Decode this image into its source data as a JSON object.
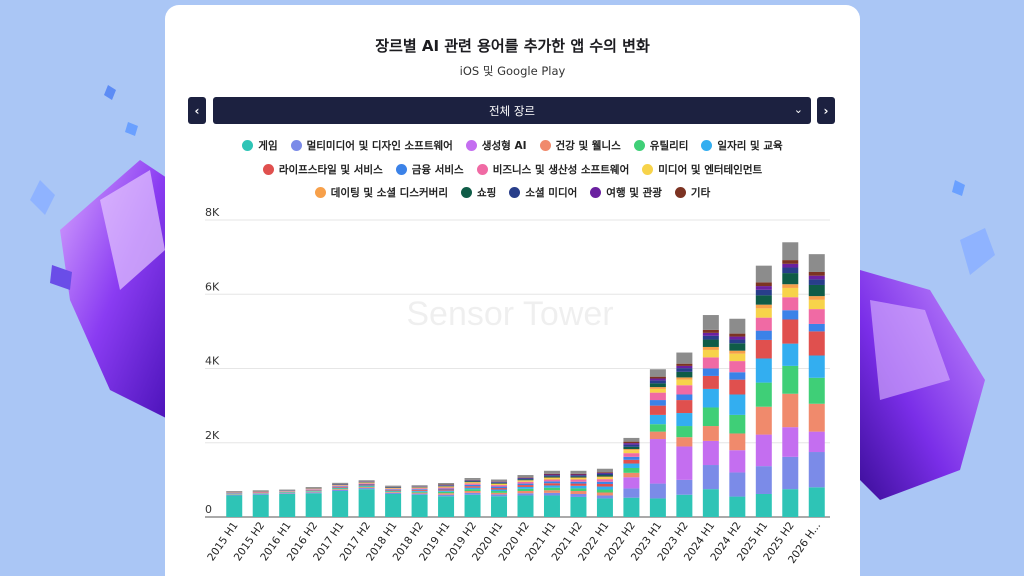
{
  "header": {
    "title": "장르별 AI 관련 용어를 추가한 앱 수의 변화",
    "subtitle": "iOS 및 Google Play"
  },
  "controls": {
    "prev_label": "‹",
    "next_label": "›",
    "genre_select_value": "전체 장르",
    "genre_select_icon": "chevron-down-icon"
  },
  "watermark": "Sensor Tower",
  "chart_data": {
    "type": "bar",
    "stacked": true,
    "title": "장르별 AI 관련 용어를 추가한 앱 수의 변화",
    "subtitle": "iOS 및 Google Play",
    "categories": [
      "2015 H1",
      "2015 H2",
      "2016 H1",
      "2016 H2",
      "2017 H1",
      "2017 H2",
      "2018 H1",
      "2018 H2",
      "2019 H1",
      "2019 H2",
      "2020 H1",
      "2020 H2",
      "2021 H1",
      "2021 H2",
      "2022 H1",
      "2022 H2",
      "2023 H1",
      "2023 H2",
      "2024 H1",
      "2024 H2",
      "2025 H1",
      "2025 H2",
      "2026 H..."
    ],
    "ylim": [
      0,
      8000
    ],
    "yticks": [
      0,
      2000,
      4000,
      6000,
      8000
    ],
    "ytick_labels": [
      "0",
      "2K",
      "4K",
      "6K",
      "8K"
    ],
    "grid": true,
    "legend_position": "top",
    "series": [
      {
        "name": "게임",
        "color": "#2ec4b6",
        "values": [
          580,
          600,
          620,
          640,
          700,
          750,
          620,
          600,
          560,
          600,
          560,
          580,
          580,
          540,
          500,
          520,
          500,
          600,
          750,
          550,
          620,
          750,
          800
        ]
      },
      {
        "name": "멀티미디어 및 디자인 소프트웨어",
        "color": "#7b8be8",
        "values": [
          20,
          20,
          20,
          25,
          30,
          30,
          30,
          30,
          40,
          50,
          50,
          60,
          70,
          80,
          80,
          250,
          400,
          400,
          650,
          650,
          750,
          870,
          950
        ]
      },
      {
        "name": "생성형 AI",
        "color": "#c46ef0",
        "values": [
          0,
          0,
          0,
          0,
          0,
          0,
          0,
          0,
          0,
          0,
          0,
          0,
          0,
          0,
          0,
          300,
          1200,
          900,
          650,
          600,
          850,
          800,
          550
        ]
      },
      {
        "name": "건강 및 웰니스",
        "color": "#f08a6c",
        "values": [
          10,
          10,
          10,
          15,
          20,
          25,
          20,
          25,
          40,
          50,
          40,
          60,
          70,
          80,
          80,
          120,
          200,
          250,
          400,
          450,
          750,
          900,
          750
        ]
      },
      {
        "name": "유틸리티",
        "color": "#3fcf77",
        "values": [
          10,
          10,
          10,
          15,
          20,
          20,
          20,
          25,
          40,
          50,
          50,
          60,
          70,
          70,
          80,
          130,
          200,
          300,
          500,
          500,
          650,
          750,
          700
        ]
      },
      {
        "name": "일자리 및 교육",
        "color": "#33aef0",
        "values": [
          10,
          10,
          10,
          15,
          20,
          25,
          20,
          25,
          30,
          40,
          40,
          50,
          60,
          70,
          80,
          120,
          250,
          350,
          500,
          550,
          650,
          600,
          600
        ]
      },
      {
        "name": "라이프스타일 및 서비스",
        "color": "#e0504e",
        "values": [
          10,
          10,
          10,
          15,
          20,
          25,
          20,
          25,
          30,
          40,
          40,
          50,
          60,
          60,
          70,
          100,
          250,
          350,
          350,
          400,
          500,
          650,
          650
        ]
      },
      {
        "name": "금융 서비스",
        "color": "#3b82e8",
        "values": [
          5,
          5,
          5,
          10,
          15,
          15,
          15,
          20,
          25,
          35,
          40,
          40,
          50,
          50,
          60,
          80,
          150,
          150,
          200,
          200,
          250,
          250,
          200
        ]
      },
      {
        "name": "비즈니스 및 생산성 소프트웨어",
        "color": "#f06aa4",
        "values": [
          10,
          10,
          10,
          15,
          20,
          20,
          20,
          25,
          30,
          40,
          40,
          50,
          50,
          60,
          70,
          100,
          200,
          250,
          300,
          300,
          350,
          350,
          400
        ]
      },
      {
        "name": "미디어 및 엔터테인먼트",
        "color": "#f7d34a",
        "values": [
          5,
          5,
          5,
          10,
          10,
          15,
          15,
          15,
          20,
          25,
          30,
          30,
          40,
          40,
          50,
          80,
          100,
          150,
          200,
          200,
          250,
          250,
          250
        ]
      },
      {
        "name": "데이팅 및 소셜 디스커버리",
        "color": "#f7a04a",
        "values": [
          3,
          3,
          3,
          5,
          5,
          5,
          5,
          5,
          10,
          10,
          10,
          10,
          15,
          15,
          20,
          30,
          50,
          60,
          80,
          80,
          100,
          100,
          100
        ]
      },
      {
        "name": "쇼핑",
        "color": "#0f5c47",
        "values": [
          5,
          5,
          5,
          5,
          10,
          10,
          10,
          10,
          15,
          20,
          20,
          25,
          30,
          30,
          40,
          60,
          100,
          150,
          200,
          200,
          250,
          300,
          300
        ]
      },
      {
        "name": "소셜 미디어",
        "color": "#283e8a",
        "values": [
          5,
          5,
          5,
          5,
          10,
          10,
          10,
          10,
          15,
          20,
          20,
          25,
          30,
          30,
          40,
          60,
          80,
          100,
          100,
          100,
          150,
          150,
          150
        ]
      },
      {
        "name": "여행 및 관광",
        "color": "#6a20a0",
        "values": [
          3,
          3,
          3,
          3,
          5,
          5,
          5,
          5,
          10,
          10,
          10,
          15,
          20,
          20,
          20,
          40,
          50,
          60,
          80,
          80,
          100,
          100,
          100
        ]
      },
      {
        "name": "기타",
        "color": "#7c3322",
        "values": [
          3,
          3,
          3,
          3,
          5,
          5,
          5,
          5,
          10,
          10,
          10,
          15,
          20,
          20,
          20,
          40,
          50,
          60,
          80,
          80,
          100,
          100,
          100
        ]
      },
      {
        "name": "",
        "color": "#8c8c8c",
        "values": [
          20,
          20,
          20,
          25,
          30,
          30,
          30,
          30,
          40,
          50,
          50,
          60,
          80,
          80,
          90,
          100,
          200,
          300,
          400,
          400,
          450,
          480,
          480
        ]
      }
    ]
  }
}
